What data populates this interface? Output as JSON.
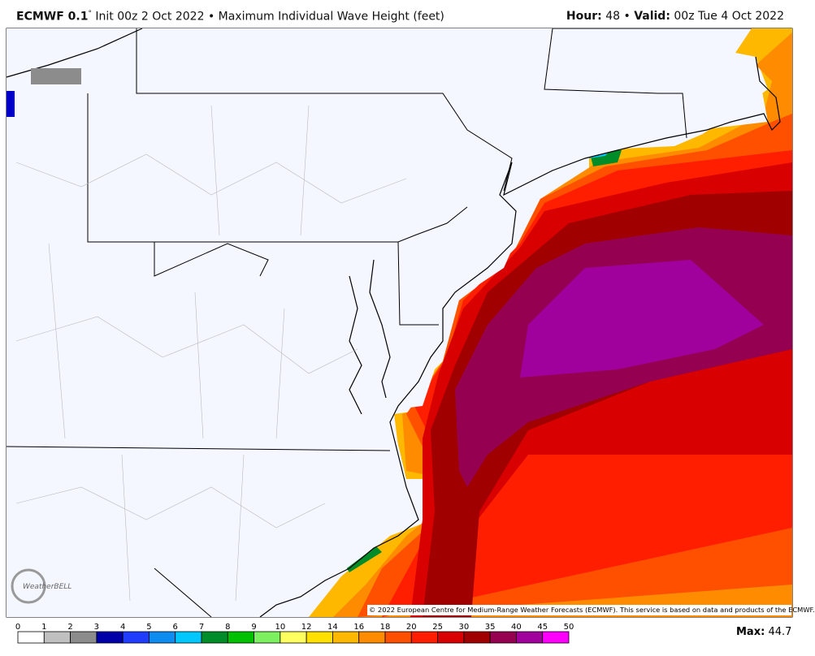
{
  "header": {
    "model": "ECMWF 0.1",
    "degree": "°",
    "title": "Init 00z 2 Oct 2022 • Maximum Individual Wave Height (feet)",
    "hour_label": "Hour:",
    "hour": "48",
    "separator": "•",
    "valid_label": "Valid:",
    "valid": "00z Tue 4 Oct 2022"
  },
  "map": {
    "credit": "© 2022 European Centre for Medium-Range Weather Forecasts (ECMWF). This service is based on data and products of the ECMWF.",
    "logo": "WeatherBELL"
  },
  "colorbar": {
    "ticks": [
      0,
      1,
      2,
      3,
      4,
      5,
      6,
      7,
      8,
      9,
      10,
      12,
      14,
      16,
      18,
      20,
      25,
      30,
      35,
      40,
      45,
      50
    ],
    "colors": [
      "#ffffff",
      "#c0c0c0",
      "#8c8c8c",
      "#0000a8",
      "#1f3cff",
      "#0f8cf0",
      "#00c8ff",
      "#008c28",
      "#00c000",
      "#7cf060",
      "#ffff60",
      "#ffe000",
      "#ffb800",
      "#ff8c00",
      "#ff5000",
      "#ff1e00",
      "#d80000",
      "#a00000",
      "#960050",
      "#a0009c",
      "#ff00ff"
    ]
  },
  "footer": {
    "max_label": "Max:",
    "max_value": "44.7"
  }
}
